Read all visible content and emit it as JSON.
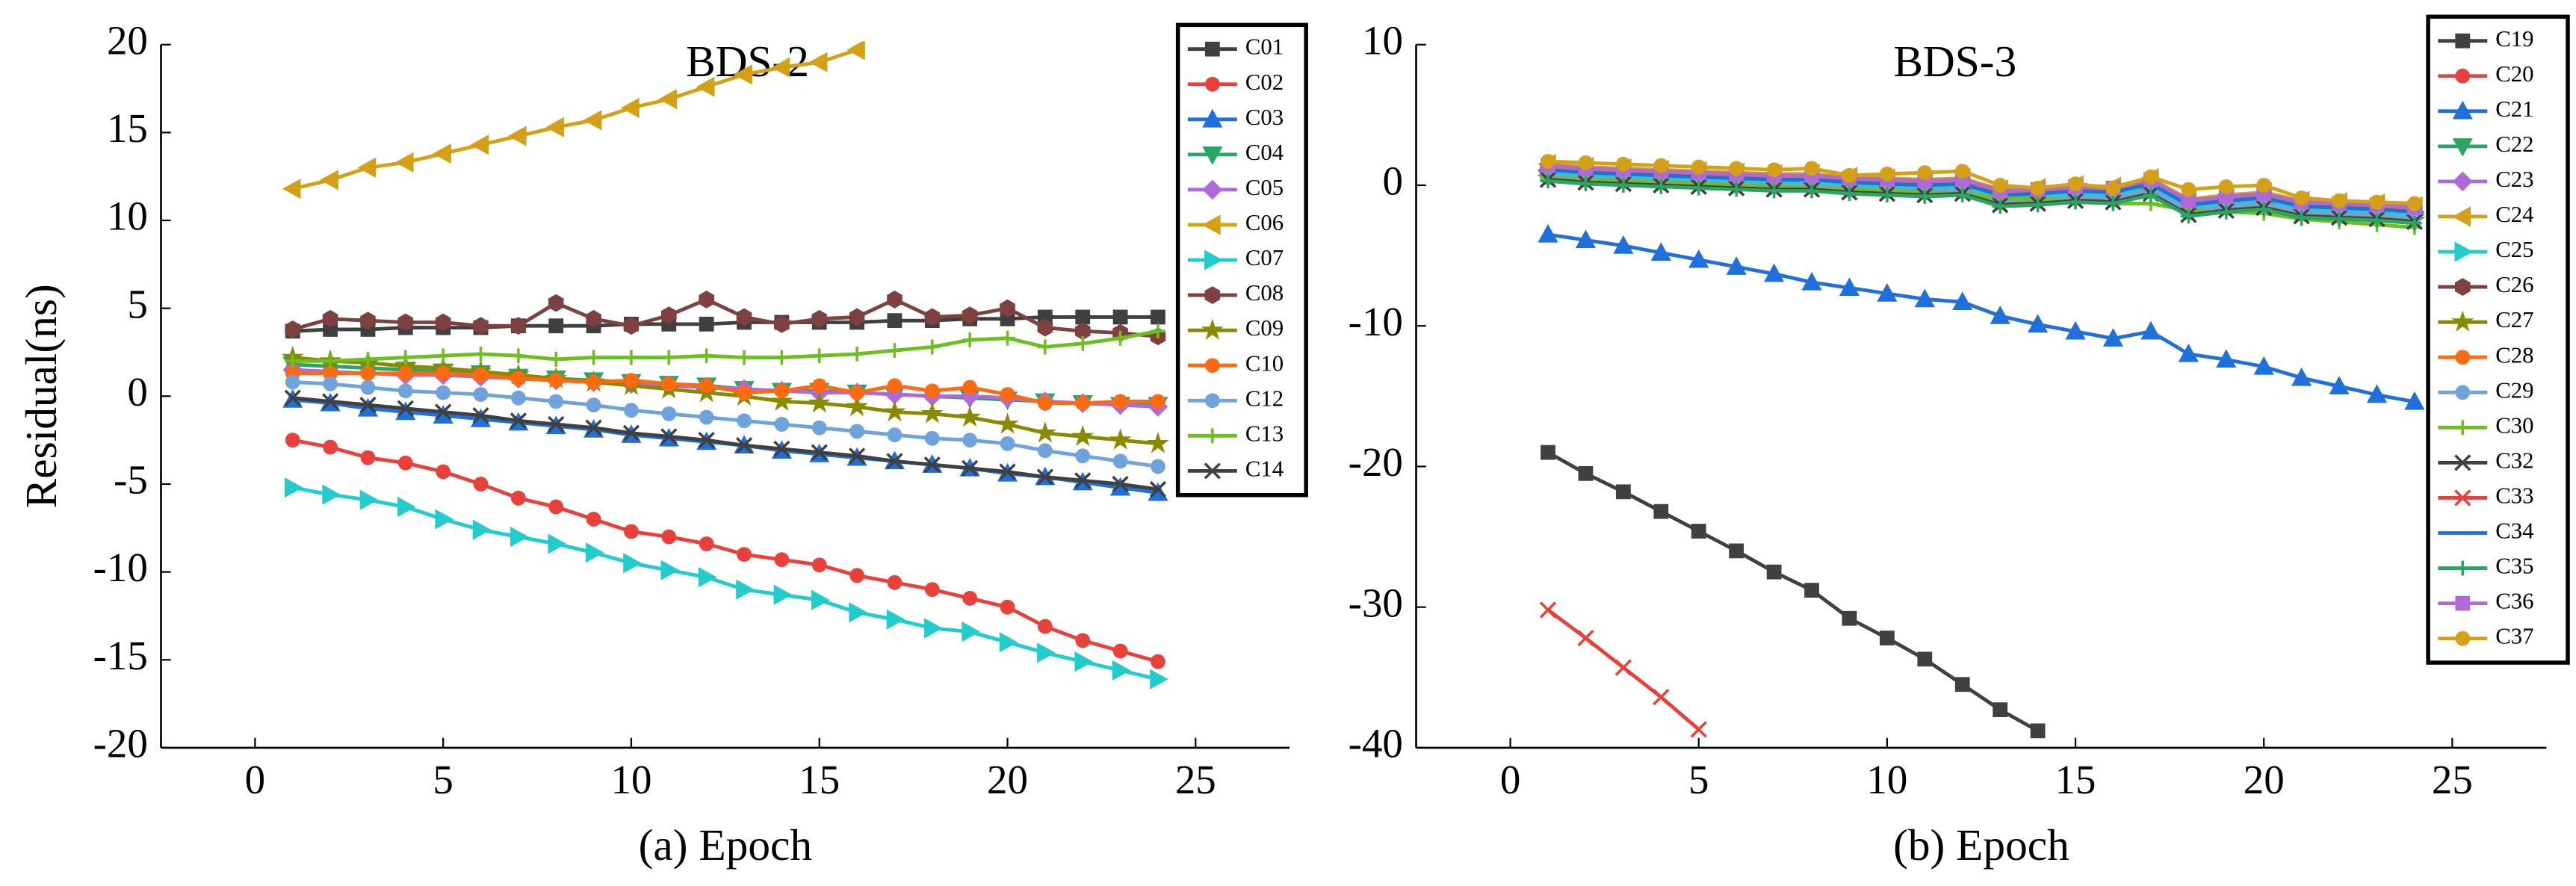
{
  "chart_data": [
    {
      "type": "line",
      "title": "BDS-2",
      "xlabel": "(a) Epoch",
      "ylabel": "Residual(ns)",
      "x": [
        1,
        2,
        3,
        4,
        5,
        6,
        7,
        8,
        9,
        10,
        11,
        12,
        13,
        14,
        15,
        16,
        17,
        18,
        19,
        20,
        21,
        22,
        23,
        24
      ],
      "xlim": [
        -2.5,
        27.5
      ],
      "xticks": [
        0,
        5,
        10,
        15,
        20,
        25
      ],
      "ylim": [
        -20,
        20
      ],
      "yticks": [
        -20,
        -15,
        -10,
        -5,
        0,
        5,
        10,
        15,
        20
      ],
      "legend": "upper right",
      "series": [
        {
          "name": "C01",
          "color": "#404040",
          "marker": "square",
          "values": [
            3.7,
            3.8,
            3.8,
            3.9,
            3.9,
            3.9,
            4.0,
            4.0,
            4.0,
            4.1,
            4.1,
            4.1,
            4.2,
            4.2,
            4.2,
            4.2,
            4.3,
            4.3,
            4.4,
            4.4,
            4.5,
            4.5,
            4.5,
            4.5
          ]
        },
        {
          "name": "C02",
          "color": "#e8403a",
          "marker": "circle",
          "values": [
            -2.5,
            -2.9,
            -3.5,
            -3.8,
            -4.3,
            -5.0,
            -5.8,
            -6.3,
            -7.0,
            -7.7,
            -8.0,
            -8.4,
            -9.0,
            -9.3,
            -9.6,
            -10.2,
            -10.6,
            -11.0,
            -11.5,
            -12.0,
            -13.1,
            -13.9,
            -14.5,
            -15.1
          ]
        },
        {
          "name": "C03",
          "color": "#1f6fdc",
          "marker": "triangle-up",
          "values": [
            -0.2,
            -0.4,
            -0.7,
            -0.9,
            -1.1,
            -1.3,
            -1.5,
            -1.7,
            -1.9,
            -2.2,
            -2.4,
            -2.6,
            -2.8,
            -3.1,
            -3.3,
            -3.5,
            -3.7,
            -3.9,
            -4.1,
            -4.4,
            -4.6,
            -4.9,
            -5.2,
            -5.5
          ]
        },
        {
          "name": "C04",
          "color": "#2aa564",
          "marker": "triangle-down",
          "values": [
            1.8,
            1.7,
            1.6,
            1.5,
            1.4,
            1.3,
            1.1,
            1.0,
            0.9,
            0.8,
            0.7,
            0.6,
            0.4,
            0.3,
            0.3,
            0.2,
            0.1,
            0.0,
            -0.1,
            -0.2,
            -0.3,
            -0.4,
            -0.5,
            -0.5
          ]
        },
        {
          "name": "C05",
          "color": "#b06ad8",
          "marker": "diamond",
          "values": [
            1.5,
            1.4,
            1.3,
            1.2,
            1.2,
            1.1,
            1.0,
            0.9,
            0.8,
            0.7,
            0.6,
            0.5,
            0.4,
            0.3,
            0.2,
            0.2,
            0.1,
            0.0,
            0.0,
            -0.1,
            -0.3,
            -0.4,
            -0.5,
            -0.6
          ]
        },
        {
          "name": "C06",
          "color": "#d4a017",
          "marker": "triangle-left",
          "values": [
            11.8,
            12.3,
            13.0,
            13.3,
            13.8,
            14.3,
            14.8,
            15.3,
            15.7,
            16.4,
            16.9,
            17.6,
            18.3,
            18.7,
            19.0,
            19.7,
            null,
            null,
            null,
            null,
            null,
            null,
            null,
            null
          ]
        },
        {
          "name": "C07",
          "color": "#22cccc",
          "marker": "triangle-right",
          "values": [
            -5.2,
            -5.6,
            -5.9,
            -6.3,
            -7.0,
            -7.6,
            -8.0,
            -8.4,
            -8.9,
            -9.5,
            -9.9,
            -10.3,
            -11.0,
            -11.3,
            -11.6,
            -12.3,
            -12.7,
            -13.2,
            -13.4,
            -14.0,
            -14.6,
            -15.1,
            -15.6,
            -16.1
          ]
        },
        {
          "name": "C08",
          "color": "#7f4040",
          "marker": "hexagon",
          "values": [
            3.8,
            4.4,
            4.3,
            4.2,
            4.2,
            4.0,
            4.0,
            5.3,
            4.4,
            4.0,
            4.6,
            5.5,
            4.5,
            4.1,
            4.4,
            4.5,
            5.5,
            4.5,
            4.6,
            5.0,
            3.9,
            3.7,
            3.6,
            3.4
          ]
        },
        {
          "name": "C09",
          "color": "#8a8a00",
          "marker": "star",
          "values": [
            2.2,
            2.0,
            1.9,
            1.7,
            1.6,
            1.4,
            1.2,
            1.0,
            0.8,
            0.6,
            0.4,
            0.2,
            0.0,
            -0.3,
            -0.4,
            -0.6,
            -0.9,
            -1.0,
            -1.2,
            -1.6,
            -2.1,
            -2.3,
            -2.5,
            -2.7
          ]
        },
        {
          "name": "C10",
          "color": "#ff6a10",
          "marker": "circle",
          "values": [
            1.3,
            1.3,
            1.3,
            1.3,
            1.3,
            1.2,
            1.0,
            0.9,
            0.8,
            0.9,
            0.7,
            0.6,
            0.2,
            0.3,
            0.6,
            0.2,
            0.6,
            0.3,
            0.5,
            0.1,
            -0.4,
            -0.4,
            -0.3,
            -0.3
          ]
        },
        {
          "name": "C12",
          "color": "#6fa3dc",
          "marker": "circle",
          "values": [
            0.8,
            0.7,
            0.5,
            0.3,
            0.2,
            0.1,
            -0.1,
            -0.3,
            -0.5,
            -0.8,
            -1.0,
            -1.2,
            -1.4,
            -1.6,
            -1.8,
            -2.0,
            -2.2,
            -2.4,
            -2.5,
            -2.7,
            -3.1,
            -3.4,
            -3.7,
            -4.0
          ]
        },
        {
          "name": "C13",
          "color": "#6cbf1e",
          "marker": "plus",
          "values": [
            2.0,
            2.0,
            2.1,
            2.2,
            2.3,
            2.4,
            2.3,
            2.1,
            2.2,
            2.2,
            2.2,
            2.3,
            2.2,
            2.2,
            2.3,
            2.4,
            2.6,
            2.8,
            3.2,
            3.3,
            2.8,
            3.0,
            3.3,
            3.7
          ]
        },
        {
          "name": "C14",
          "color": "#404040",
          "marker": "x",
          "values": [
            -0.1,
            -0.3,
            -0.5,
            -0.7,
            -0.9,
            -1.1,
            -1.4,
            -1.6,
            -1.8,
            -2.1,
            -2.3,
            -2.5,
            -2.8,
            -3.0,
            -3.2,
            -3.4,
            -3.7,
            -3.9,
            -4.1,
            -4.3,
            -4.6,
            -4.8,
            -5.0,
            -5.3
          ]
        }
      ]
    },
    {
      "type": "line",
      "title": "BDS-3",
      "xlabel": "(b) Epoch",
      "x": [
        1,
        2,
        3,
        4,
        5,
        6,
        7,
        8,
        9,
        10,
        11,
        12,
        13,
        14,
        15,
        16,
        17,
        18,
        19,
        20,
        21,
        22,
        23,
        24
      ],
      "xlim": [
        -2.5,
        27.5
      ],
      "xticks": [
        0,
        5,
        10,
        15,
        20,
        25
      ],
      "ylim": [
        -40,
        10
      ],
      "yticks": [
        -40,
        -30,
        -20,
        -10,
        0,
        10
      ],
      "legend": "upper right",
      "series": [
        {
          "name": "C19",
          "color": "#404040",
          "marker": "square",
          "values": [
            -19.0,
            -20.5,
            -21.8,
            -23.2,
            -24.6,
            -26.0,
            -27.5,
            -28.8,
            -30.8,
            -32.2,
            -33.7,
            -35.5,
            -37.3,
            -38.8,
            null,
            null,
            null,
            null,
            null,
            null,
            null,
            null,
            null,
            null
          ]
        },
        {
          "name": "C20",
          "color": "#e8403a",
          "marker": "circle",
          "values": [
            0.8,
            0.6,
            0.5,
            0.4,
            0.3,
            0.2,
            0.1,
            0.1,
            -0.1,
            -0.2,
            -0.3,
            -0.2,
            -1.0,
            -0.9,
            -0.7,
            -0.8,
            -0.2,
            -1.7,
            -1.4,
            -1.2,
            -1.8,
            -1.9,
            -2.0,
            -2.2
          ]
        },
        {
          "name": "C21",
          "color": "#1f6fdc",
          "marker": "triangle-up",
          "values": [
            -3.5,
            -3.9,
            -4.3,
            -4.8,
            -5.3,
            -5.8,
            -6.3,
            -6.9,
            -7.3,
            -7.7,
            -8.1,
            -8.3,
            -9.3,
            -9.9,
            -10.4,
            -10.9,
            -10.4,
            -12.0,
            -12.4,
            -12.9,
            -13.7,
            -14.3,
            -14.9,
            -15.4
          ]
        },
        {
          "name": "C22",
          "color": "#2aa564",
          "marker": "triangle-down",
          "values": [
            0.6,
            0.4,
            0.3,
            0.2,
            0.1,
            0.0,
            -0.1,
            -0.1,
            -0.3,
            -0.4,
            -0.5,
            -0.4,
            -1.2,
            -1.1,
            -0.9,
            -1.0,
            -0.4,
            -1.9,
            -1.6,
            -1.4,
            -2.0,
            -2.1,
            -2.2,
            -2.4
          ]
        },
        {
          "name": "C23",
          "color": "#b06ad8",
          "marker": "diamond",
          "values": [
            1.0,
            0.8,
            0.7,
            0.6,
            0.5,
            0.4,
            0.3,
            0.3,
            0.1,
            0.0,
            -0.1,
            0.0,
            -0.8,
            -0.7,
            -0.5,
            -0.6,
            0.0,
            -1.5,
            -1.2,
            -1.0,
            -1.6,
            -1.7,
            -1.8,
            -2.0
          ]
        },
        {
          "name": "C24",
          "color": "#d4a017",
          "marker": "triangle-left",
          "values": [
            1.5,
            1.3,
            1.2,
            1.1,
            1.0,
            0.9,
            0.8,
            0.8,
            0.6,
            0.5,
            0.4,
            0.5,
            -0.3,
            -0.2,
            0.0,
            -0.1,
            0.5,
            -1.0,
            -0.7,
            -0.5,
            -1.1,
            -1.2,
            -1.3,
            -1.5
          ]
        },
        {
          "name": "C25",
          "color": "#22cccc",
          "marker": "triangle-right",
          "values": [
            0.9,
            0.7,
            0.6,
            0.5,
            0.4,
            0.3,
            0.2,
            0.2,
            0.0,
            -0.1,
            -0.2,
            -0.1,
            -0.9,
            -0.8,
            -0.6,
            -0.7,
            -0.1,
            -1.6,
            -1.3,
            -1.1,
            -1.7,
            -1.8,
            -1.9,
            -2.1
          ]
        },
        {
          "name": "C26",
          "color": "#7f4040",
          "marker": "hexagon",
          "values": [
            1.2,
            1.0,
            0.9,
            0.8,
            0.7,
            0.6,
            0.5,
            0.5,
            0.3,
            0.2,
            0.1,
            0.2,
            -0.6,
            -0.5,
            -0.3,
            -0.4,
            0.2,
            -1.3,
            -1.0,
            -0.8,
            -1.4,
            -1.5,
            -1.6,
            -1.8
          ]
        },
        {
          "name": "C27",
          "color": "#8a8a00",
          "marker": "star",
          "values": [
            0.5,
            0.3,
            0.2,
            0.1,
            0.0,
            -0.1,
            -0.2,
            -0.2,
            -0.4,
            -0.5,
            -0.6,
            -0.5,
            -1.3,
            -1.2,
            -1.0,
            -1.1,
            -0.5,
            -2.0,
            -1.7,
            -1.5,
            -2.1,
            -2.2,
            -2.3,
            -2.5
          ]
        },
        {
          "name": "C28",
          "color": "#ff6a10",
          "marker": "circle",
          "values": [
            1.3,
            1.1,
            1.0,
            0.9,
            0.8,
            0.7,
            0.6,
            0.6,
            0.4,
            0.3,
            0.2,
            0.3,
            -0.5,
            -0.4,
            -0.2,
            -0.3,
            0.3,
            -1.2,
            -0.9,
            -0.7,
            -1.3,
            -1.4,
            -1.5,
            -1.7
          ]
        },
        {
          "name": "C29",
          "color": "#6fa3dc",
          "marker": "circle",
          "values": [
            0.7,
            0.5,
            0.4,
            0.3,
            0.2,
            0.1,
            0.0,
            0.0,
            -0.2,
            -0.3,
            -0.4,
            -0.3,
            -1.1,
            -1.0,
            -0.8,
            -0.9,
            -0.3,
            -1.8,
            -1.5,
            -1.3,
            -1.9,
            -2.0,
            -2.1,
            -2.3
          ]
        },
        {
          "name": "C30",
          "color": "#6cbf1e",
          "marker": "plus",
          "values": [
            0.5,
            0.4,
            0.3,
            0.2,
            0.1,
            0.0,
            -0.1,
            -0.2,
            -0.3,
            -0.4,
            -0.5,
            -0.6,
            -0.9,
            -1.0,
            -1.1,
            -1.3,
            -1.3,
            -1.8,
            -1.9,
            -2.0,
            -2.4,
            -2.6,
            -2.8,
            -3.0
          ]
        },
        {
          "name": "C32",
          "color": "#404040",
          "marker": "x",
          "values": [
            0.4,
            0.2,
            0.1,
            0.0,
            -0.1,
            -0.2,
            -0.3,
            -0.3,
            -0.5,
            -0.6,
            -0.7,
            -0.6,
            -1.4,
            -1.3,
            -1.1,
            -1.2,
            -0.6,
            -2.1,
            -1.8,
            -1.6,
            -2.2,
            -2.3,
            -2.4,
            -2.6
          ]
        },
        {
          "name": "C33",
          "color": "#e8403a",
          "marker": "x",
          "values": [
            -30.2,
            -32.2,
            -34.3,
            -36.4,
            -38.7,
            null,
            null,
            null,
            null,
            null,
            null,
            null,
            null,
            null,
            null,
            null,
            null,
            null,
            null,
            null,
            null,
            null,
            null,
            null
          ]
        },
        {
          "name": "C34",
          "color": "#1f6fdc",
          "marker": "none",
          "values": [
            1.1,
            0.9,
            0.8,
            0.7,
            0.6,
            0.5,
            0.4,
            0.4,
            0.2,
            0.1,
            0.0,
            0.1,
            -0.7,
            -0.6,
            -0.4,
            -0.5,
            0.1,
            -1.4,
            -1.1,
            -0.9,
            -1.5,
            -1.6,
            -1.7,
            -1.9
          ]
        },
        {
          "name": "C35",
          "color": "#2aa564",
          "marker": "plus",
          "values": [
            0.3,
            0.1,
            0.0,
            -0.1,
            -0.2,
            -0.3,
            -0.4,
            -0.4,
            -0.6,
            -0.7,
            -0.8,
            -0.7,
            -1.5,
            -1.4,
            -1.2,
            -1.3,
            -0.7,
            -2.2,
            -1.9,
            -1.7,
            -2.3,
            -2.4,
            -2.5,
            -2.7
          ]
        },
        {
          "name": "C36",
          "color": "#b06ad8",
          "marker": "square",
          "values": [
            1.4,
            1.2,
            1.1,
            1.0,
            0.9,
            0.8,
            0.7,
            0.7,
            0.5,
            0.4,
            0.3,
            0.4,
            -0.4,
            -0.3,
            -0.1,
            -0.2,
            0.4,
            -1.1,
            -0.8,
            -0.6,
            -1.2,
            -1.3,
            -1.4,
            -1.6
          ]
        },
        {
          "name": "C37",
          "color": "#d4a017",
          "marker": "circle",
          "values": [
            1.7,
            1.6,
            1.5,
            1.4,
            1.3,
            1.2,
            1.1,
            1.2,
            0.7,
            0.8,
            0.9,
            1.0,
            0.0,
            -0.2,
            0.1,
            -0.2,
            0.6,
            -0.3,
            -0.1,
            0.0,
            -0.9,
            -1.1,
            -1.2,
            -1.3
          ]
        }
      ]
    }
  ]
}
